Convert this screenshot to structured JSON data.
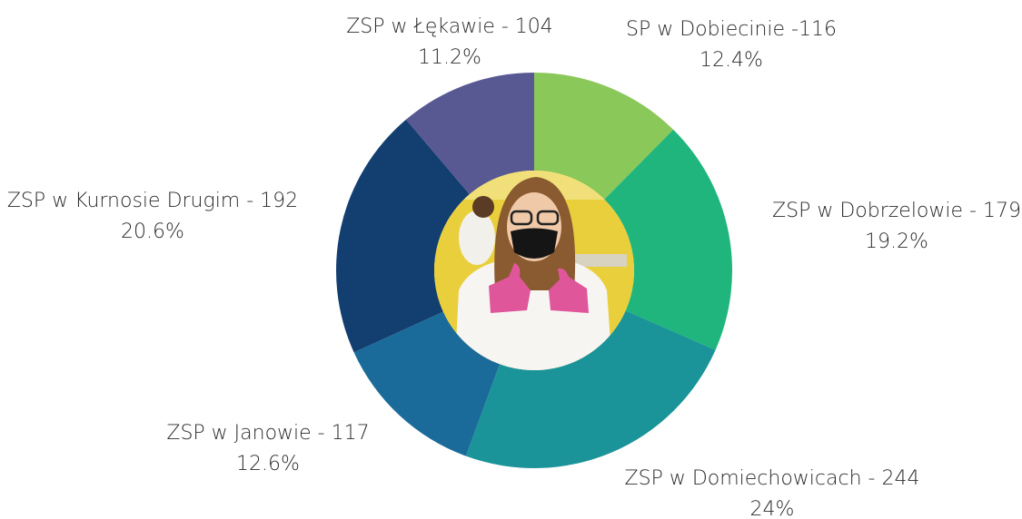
{
  "chart_data": {
    "type": "donut",
    "categories": [
      "SP w Dobiecinie -116",
      "ZSP w Dobrzelowie - 179",
      "ZSP w Domiechowicach - 244",
      "ZSP w Janowie - 117",
      "ZSP w Kurnosie Drugim - 192",
      "ZSP w Łękawie - 104"
    ],
    "values": [
      12.4,
      19.2,
      24,
      12.6,
      20.6,
      11.2
    ],
    "value_labels": [
      "12.4%",
      "19.2%",
      "24%",
      "12.6%",
      "20.6%",
      "11.2%"
    ],
    "colors": [
      "#8bc85a",
      "#20b57c",
      "#1a9499",
      "#1b6b9a",
      "#123f70",
      "#585893"
    ]
  }
}
